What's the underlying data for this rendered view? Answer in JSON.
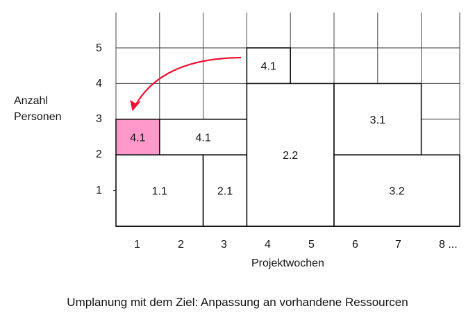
{
  "y_axis_label_line1": "Anzahl",
  "y_axis_label_line2": "Personen",
  "y_ticks": [
    "1",
    "2",
    "3",
    "4",
    "5"
  ],
  "x_ticks": [
    "1",
    "2",
    "3",
    "4",
    "5",
    "6",
    "7",
    "8 ..."
  ],
  "x_axis_label": "Projektwochen",
  "caption": "Umplanung mit dem Ziel: Anpassung an vorhandene Ressourcen",
  "tasks": [
    {
      "label": "4.1",
      "week_start": 1,
      "week_end": 1,
      "persons_from": 2,
      "persons_to": 3,
      "highlight": true
    },
    {
      "label": "4.1",
      "week_start": 2,
      "week_end": 3,
      "persons_from": 2,
      "persons_to": 3
    },
    {
      "label": "1.1",
      "week_start": 1,
      "week_end": 2,
      "persons_from": 0,
      "persons_to": 2
    },
    {
      "label": "2.1",
      "week_start": 3,
      "week_end": 3,
      "persons_from": 0,
      "persons_to": 2
    },
    {
      "label": "4.1",
      "week_start": 4,
      "week_end": 4,
      "persons_from": 4,
      "persons_to": 5
    },
    {
      "label": "2.2",
      "week_start": 4,
      "week_end": 5,
      "persons_from": 0,
      "persons_to": 4
    },
    {
      "label": "3.1",
      "week_start": 6,
      "week_end": 7,
      "persons_from": 2,
      "persons_to": 4
    },
    {
      "label": "3.2",
      "week_start": 6,
      "week_end": 8,
      "persons_from": 0,
      "persons_to": 2
    }
  ],
  "colors": {
    "highlight": "#ff99cc",
    "arrow": "#ee1133"
  }
}
